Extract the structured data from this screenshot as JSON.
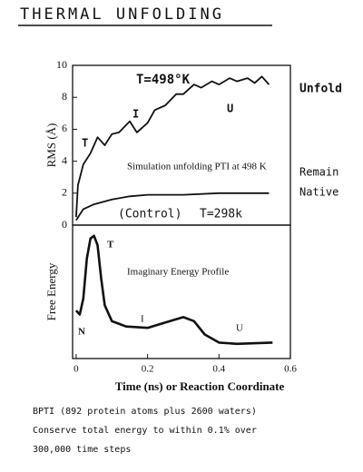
{
  "title": "THERMAL UNFOLDING",
  "notes": [
    "BPTI (892 protein atoms plus 2600 waters)",
    "Conserve total energy to within 0.1% over",
    "300,000 time steps"
  ],
  "chart_data": [
    {
      "type": "line",
      "ylabel": "RMS (Å)",
      "xlim": [
        -0.01,
        0.6
      ],
      "ylim": [
        0,
        10
      ],
      "yticks": [
        0,
        2,
        4,
        6,
        8,
        10
      ],
      "annotations": [
        "T=498°K",
        "Unfold",
        "Remain",
        "Native",
        "(Control)",
        "T=298k",
        "Simulation unfolding PTI at 498 K",
        "T",
        "I",
        "U"
      ],
      "series": [
        {
          "name": "Unfold",
          "color": "#111111",
          "x": [
            0,
            0.005,
            0.02,
            0.04,
            0.06,
            0.08,
            0.1,
            0.12,
            0.15,
            0.17,
            0.2,
            0.22,
            0.25,
            0.28,
            0.3,
            0.33,
            0.35,
            0.38,
            0.4,
            0.43,
            0.45,
            0.48,
            0.5,
            0.52,
            0.54
          ],
          "values": [
            0.5,
            2.5,
            3.8,
            4.5,
            5.5,
            5.0,
            5.7,
            5.8,
            6.5,
            5.8,
            6.4,
            7.2,
            7.5,
            8.2,
            8.2,
            8.8,
            8.6,
            9.0,
            8.8,
            9.2,
            9.0,
            9.2,
            8.9,
            9.3,
            8.8
          ]
        },
        {
          "name": "Control",
          "color": "#111111",
          "x": [
            0,
            0.02,
            0.05,
            0.1,
            0.15,
            0.2,
            0.3,
            0.4,
            0.5,
            0.54
          ],
          "values": [
            0.3,
            1.0,
            1.3,
            1.6,
            1.8,
            1.9,
            1.9,
            2.0,
            2.0,
            2.0
          ]
        }
      ]
    },
    {
      "type": "line",
      "ylabel": "Free Energy",
      "xlabel": "Time (ns) or Reaction Coordinate",
      "xlim": [
        -0.01,
        0.6
      ],
      "ylim": [
        0,
        10
      ],
      "xticks": [
        0,
        0.2,
        0.4,
        0.6
      ],
      "annotations": [
        "Imaginary Energy Profile",
        "N",
        "T",
        "I",
        "U"
      ],
      "series": [
        {
          "name": "Free Energy",
          "color": "#111111",
          "x": [
            0,
            0.01,
            0.02,
            0.03,
            0.04,
            0.05,
            0.06,
            0.07,
            0.08,
            0.1,
            0.14,
            0.2,
            0.25,
            0.3,
            0.33,
            0.36,
            0.4,
            0.45,
            0.55
          ],
          "values": [
            3.6,
            3.3,
            4.5,
            7.5,
            9.0,
            9.2,
            8.5,
            6.0,
            4.0,
            2.8,
            2.4,
            2.3,
            2.7,
            3.1,
            2.8,
            1.8,
            1.2,
            1.1,
            1.2
          ]
        }
      ]
    }
  ]
}
